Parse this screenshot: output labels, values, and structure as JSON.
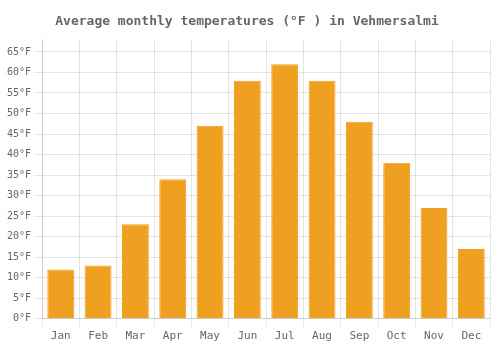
{
  "chart_data": {
    "type": "bar",
    "title": "Average monthly temperatures (°F ) in Vehmersalmi",
    "categories": [
      "Jan",
      "Feb",
      "Mar",
      "Apr",
      "May",
      "Jun",
      "Jul",
      "Aug",
      "Sep",
      "Oct",
      "Nov",
      "Dec"
    ],
    "values": [
      12,
      13,
      23,
      34,
      47,
      58,
      62,
      58,
      48,
      38,
      27,
      17
    ],
    "color": "#F0A020",
    "ylim": [
      0,
      68
    ],
    "yticks": [
      {
        "value": 0,
        "label": "0°F"
      },
      {
        "value": 5,
        "label": "5°F"
      },
      {
        "value": 10,
        "label": "10°F"
      },
      {
        "value": 15,
        "label": "15°F"
      },
      {
        "value": 20,
        "label": "20°F"
      },
      {
        "value": 25,
        "label": "25°F"
      },
      {
        "value": 30,
        "label": "30°F"
      },
      {
        "value": 35,
        "label": "35°F"
      },
      {
        "value": 40,
        "label": "40°F"
      },
      {
        "value": 45,
        "label": "45°F"
      },
      {
        "value": 50,
        "label": "50°F"
      },
      {
        "value": 55,
        "label": "55°F"
      },
      {
        "value": 60,
        "label": "60°F"
      },
      {
        "value": 65,
        "label": "65°F"
      }
    ],
    "grid": true
  }
}
